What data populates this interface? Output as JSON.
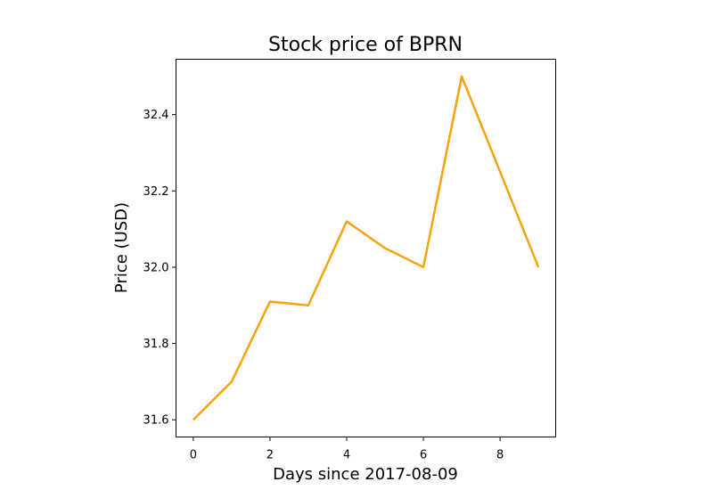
{
  "chart_data": {
    "type": "line",
    "title": "Stock price of BPRN",
    "xlabel": "Days since 2017-08-09",
    "ylabel": "Price (USD)",
    "x": [
      0,
      1,
      2,
      3,
      4,
      5,
      6,
      7,
      8,
      9
    ],
    "series": [
      {
        "values": [
          31.6,
          31.7,
          31.91,
          31.9,
          32.12,
          32.05,
          32.0,
          32.5,
          32.25,
          32.0
        ],
        "color": "#f5a50a"
      }
    ],
    "x_ticks": [
      "0",
      "2",
      "4",
      "6",
      "8"
    ],
    "y_ticks": [
      "31.6",
      "31.8",
      "32.0",
      "32.2",
      "32.4"
    ],
    "xlim": [
      -0.45,
      9.45
    ],
    "ylim": [
      31.555,
      32.545
    ],
    "grid": false,
    "legend": "none"
  }
}
